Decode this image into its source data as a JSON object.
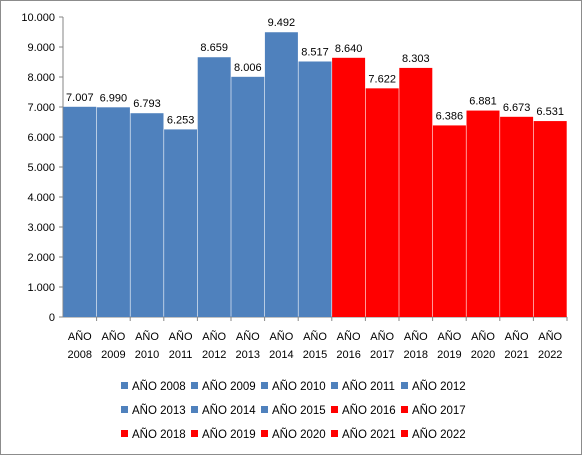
{
  "chart_data": {
    "type": "bar",
    "categories": [
      [
        "AÑO",
        "2008"
      ],
      [
        "AÑO",
        "2009"
      ],
      [
        "AÑO",
        "2010"
      ],
      [
        "AÑO",
        "2011"
      ],
      [
        "AÑO",
        "2012"
      ],
      [
        "AÑO",
        "2013"
      ],
      [
        "AÑO",
        "2014"
      ],
      [
        "AÑO",
        "2015"
      ],
      [
        "AÑO",
        "2016"
      ],
      [
        "AÑO",
        "2017"
      ],
      [
        "AÑO",
        "2018"
      ],
      [
        "AÑO",
        "2019"
      ],
      [
        "AÑO",
        "2020"
      ],
      [
        "AÑO",
        "2021"
      ],
      [
        "AÑO",
        "2022"
      ]
    ],
    "values": [
      7007,
      6990,
      6793,
      6253,
      8659,
      8006,
      9492,
      8517,
      8640,
      7622,
      8303,
      6386,
      6881,
      6673,
      6531
    ],
    "value_labels": [
      "7.007",
      "6.990",
      "6.793",
      "6.253",
      "8.659",
      "8.006",
      "9.492",
      "8.517",
      "8.640",
      "7.622",
      "8.303",
      "6.386",
      "6.881",
      "6.673",
      "6.531"
    ],
    "bar_colors": [
      "#4f81bd",
      "#4f81bd",
      "#4f81bd",
      "#4f81bd",
      "#4f81bd",
      "#4f81bd",
      "#4f81bd",
      "#4f81bd",
      "#ff0000",
      "#ff0000",
      "#ff0000",
      "#ff0000",
      "#ff0000",
      "#ff0000",
      "#ff0000"
    ],
    "ylim": [
      0,
      10000
    ],
    "yticks": [
      0,
      1000,
      2000,
      3000,
      4000,
      5000,
      6000,
      7000,
      8000,
      9000,
      10000
    ],
    "ytick_labels": [
      "0",
      "1.000",
      "2.000",
      "3.000",
      "4.000",
      "5.000",
      "6.000",
      "7.000",
      "8.000",
      "9.000",
      "10.000"
    ],
    "grid": false,
    "legend": {
      "placement": "bottom",
      "entries": [
        {
          "label": "AÑO 2008",
          "color": "#4f81bd"
        },
        {
          "label": "AÑO 2009",
          "color": "#4f81bd"
        },
        {
          "label": "AÑO 2010",
          "color": "#4f81bd"
        },
        {
          "label": "AÑO 2011",
          "color": "#4f81bd"
        },
        {
          "label": "AÑO 2012",
          "color": "#4f81bd"
        },
        {
          "label": "AÑO 2013",
          "color": "#4f81bd"
        },
        {
          "label": "AÑO 2014",
          "color": "#4f81bd"
        },
        {
          "label": "AÑO 2015",
          "color": "#4f81bd"
        },
        {
          "label": "AÑO 2016",
          "color": "#ff0000"
        },
        {
          "label": "AÑO 2017",
          "color": "#ff0000"
        },
        {
          "label": "AÑO 2018",
          "color": "#ff0000"
        },
        {
          "label": "AÑO 2019",
          "color": "#ff0000"
        },
        {
          "label": "AÑO 2020",
          "color": "#ff0000"
        },
        {
          "label": "AÑO 2021",
          "color": "#ff0000"
        },
        {
          "label": "AÑO 2022",
          "color": "#ff0000"
        }
      ]
    },
    "title": "",
    "xlabel": "",
    "ylabel": ""
  }
}
